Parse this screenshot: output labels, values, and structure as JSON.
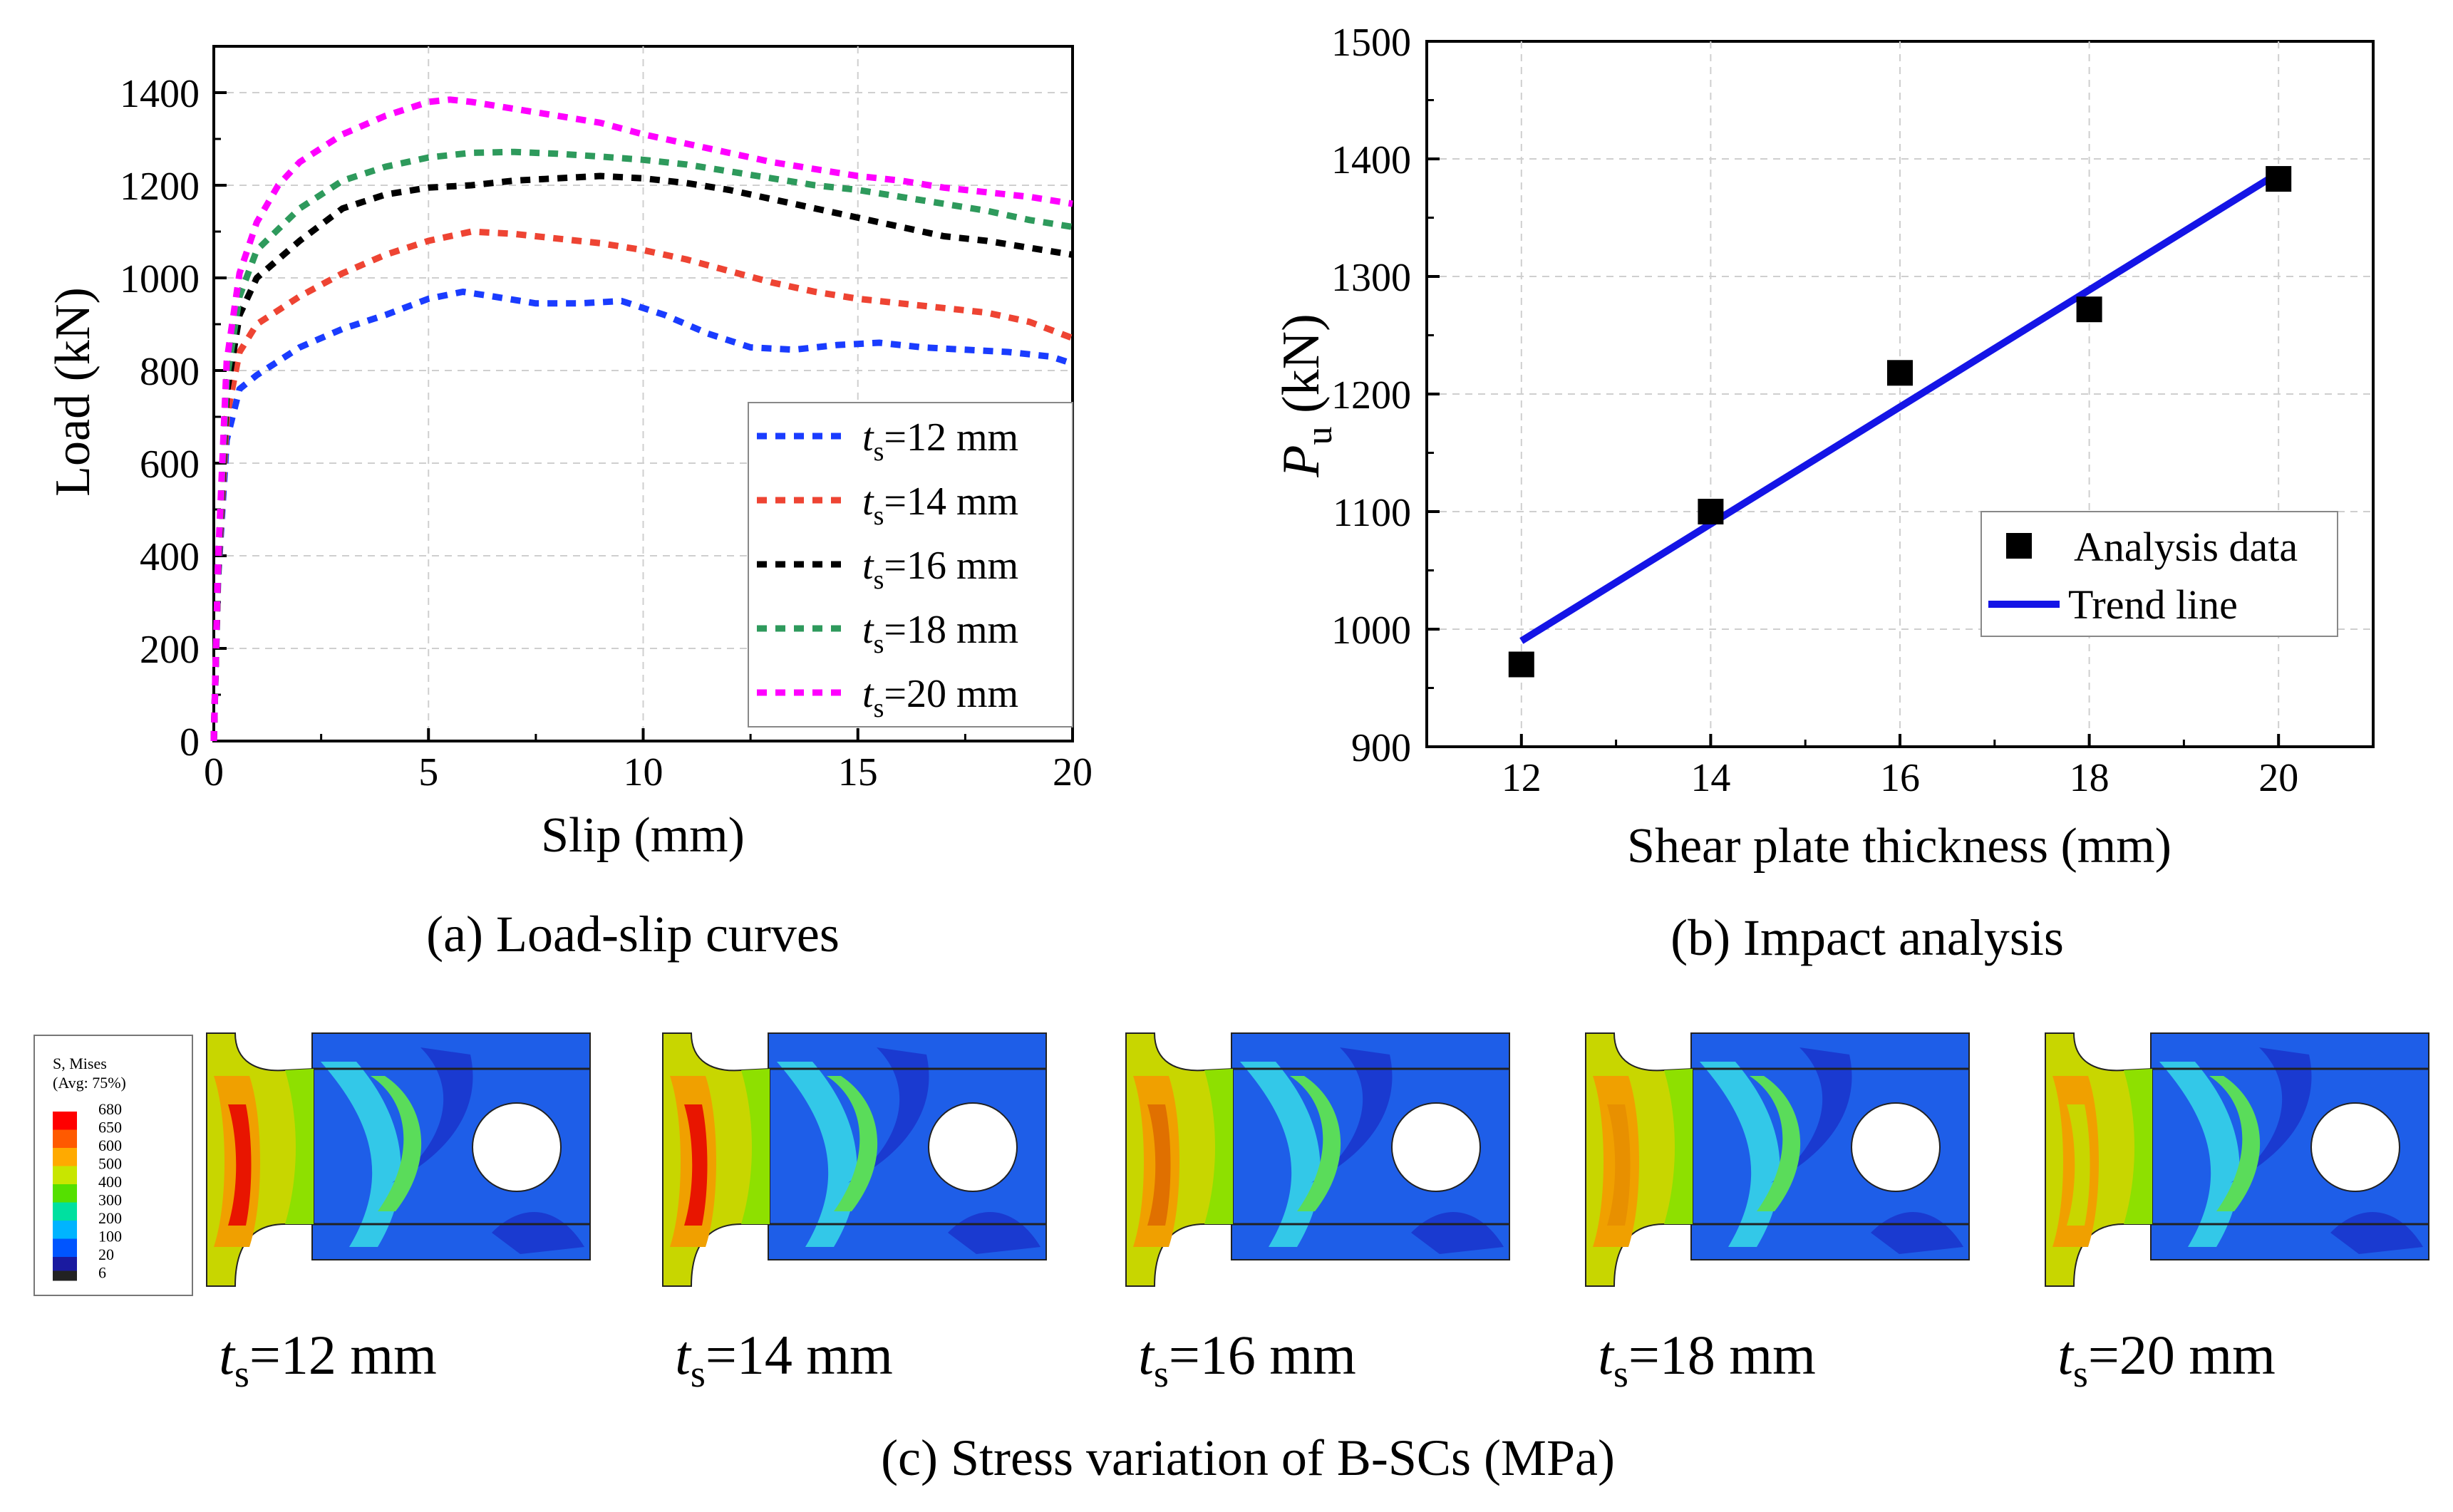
{
  "captions": {
    "a": "(a) Load-slip curves",
    "b": "(b) Impact analysis",
    "c": "(c) Stress variation of B-SCs (MPa)"
  },
  "chart_data": [
    {
      "type": "line",
      "title": "",
      "xlabel": "Slip (mm)",
      "ylabel": "Load (kN)",
      "xlim": [
        0,
        20
      ],
      "ylim": [
        0,
        1500
      ],
      "xticks": [
        0,
        5,
        10,
        15,
        20
      ],
      "yticks": [
        0,
        200,
        400,
        600,
        800,
        1000,
        1200,
        1400
      ],
      "legend_position": "bottom-right",
      "series": [
        {
          "name": "ts=12 mm",
          "label_base": "t",
          "label_sub": "s",
          "label_rest": "=12 mm",
          "color": "#1a3cff",
          "x": [
            0,
            0.1,
            0.3,
            0.6,
            1,
            2,
            3,
            4,
            5,
            5.8,
            6.5,
            7.5,
            8.5,
            9.5,
            10.5,
            11.5,
            12.5,
            13.5,
            14.5,
            15.5,
            16.5,
            17.5,
            18.5,
            19.5,
            20
          ],
          "y": [
            0,
            350,
            650,
            760,
            790,
            850,
            890,
            920,
            955,
            970,
            960,
            945,
            945,
            950,
            920,
            880,
            850,
            845,
            855,
            860,
            850,
            845,
            840,
            830,
            815
          ]
        },
        {
          "name": "ts=14 mm",
          "label_base": "t",
          "label_sub": "s",
          "label_rest": "=14 mm",
          "color": "#ee4433",
          "x": [
            0,
            0.1,
            0.3,
            0.6,
            1,
            2,
            3,
            4,
            5,
            6,
            7,
            8,
            9,
            10,
            11,
            12,
            13,
            14,
            15,
            16,
            17,
            18,
            19,
            20
          ],
          "y": [
            0,
            360,
            700,
            840,
            900,
            960,
            1010,
            1050,
            1080,
            1100,
            1095,
            1085,
            1075,
            1060,
            1040,
            1015,
            990,
            970,
            955,
            945,
            935,
            925,
            905,
            870
          ]
        },
        {
          "name": "ts=16 mm",
          "label_base": "t",
          "label_sub": "s",
          "label_rest": "=16 mm",
          "color": "#000000",
          "x": [
            0,
            0.1,
            0.3,
            0.6,
            1,
            2,
            3,
            4,
            5,
            6,
            7,
            8,
            9,
            10,
            11,
            12,
            13,
            14,
            15,
            16,
            17,
            18,
            19,
            20
          ],
          "y": [
            0,
            370,
            750,
            920,
            1000,
            1080,
            1150,
            1180,
            1195,
            1200,
            1210,
            1215,
            1220,
            1215,
            1205,
            1190,
            1170,
            1150,
            1130,
            1110,
            1090,
            1080,
            1065,
            1050
          ]
        },
        {
          "name": "ts=18 mm",
          "label_base": "t",
          "label_sub": "s",
          "label_rest": "=18 mm",
          "color": "#2e9a5c",
          "x": [
            0,
            0.1,
            0.3,
            0.6,
            1,
            2,
            3,
            4,
            5,
            6,
            7,
            8,
            9,
            10,
            11,
            12,
            13,
            14,
            15,
            16,
            17,
            18,
            19,
            20
          ],
          "y": [
            0,
            380,
            780,
            960,
            1060,
            1150,
            1210,
            1240,
            1260,
            1270,
            1272,
            1268,
            1262,
            1255,
            1245,
            1230,
            1215,
            1200,
            1190,
            1175,
            1160,
            1145,
            1125,
            1110
          ]
        },
        {
          "name": "ts=20 mm",
          "label_base": "t",
          "label_sub": "s",
          "label_rest": "=20 mm",
          "color": "#ff00ff",
          "x": [
            0,
            0.1,
            0.3,
            0.6,
            1,
            1.5,
            2,
            3,
            4,
            5,
            5.5,
            6,
            7,
            8,
            9,
            10,
            11,
            12,
            13,
            14,
            15,
            16,
            17,
            18,
            19,
            20
          ],
          "y": [
            0,
            390,
            820,
            1010,
            1120,
            1200,
            1250,
            1310,
            1350,
            1380,
            1385,
            1380,
            1365,
            1350,
            1335,
            1310,
            1290,
            1270,
            1250,
            1235,
            1220,
            1210,
            1195,
            1185,
            1175,
            1160
          ]
        }
      ]
    },
    {
      "type": "scatter",
      "title": "",
      "xlabel": "Shear plate thickness (mm)",
      "ylabel_base": "P",
      "ylabel_sub": "u",
      "ylabel_rest": " (kN)",
      "xlim": [
        11,
        21
      ],
      "ylim": [
        900,
        1500
      ],
      "xticks": [
        12,
        14,
        16,
        18,
        20
      ],
      "yticks": [
        900,
        1000,
        1100,
        1200,
        1300,
        1400,
        1500
      ],
      "legend_position": "bottom-right",
      "scatter": {
        "name": "Analysis data",
        "color": "#000000",
        "x": [
          12,
          14,
          16,
          18,
          20
        ],
        "y": [
          970,
          1100,
          1218,
          1272,
          1383
        ]
      },
      "trend": {
        "name": "Trend line",
        "color": "#1414e6",
        "x": [
          12,
          20
        ],
        "y": [
          990,
          1388
        ]
      }
    }
  ],
  "stress_panel": {
    "legend_title_1": "S, Mises",
    "legend_title_2": "(Avg: 75%)",
    "levels": [
      {
        "value": "680",
        "color": "#ff0000"
      },
      {
        "value": "650",
        "color": "#ff5a00"
      },
      {
        "value": "600",
        "color": "#ffaa00"
      },
      {
        "value": "500",
        "color": "#c8e600"
      },
      {
        "value": "400",
        "color": "#55e000"
      },
      {
        "value": "300",
        "color": "#00e0a0"
      },
      {
        "value": "200",
        "color": "#00b4ff"
      },
      {
        "value": "100",
        "color": "#0055ff"
      },
      {
        "value": "20",
        "color": "#1a1aa0"
      },
      {
        "value": "6",
        "color": "#222222"
      }
    ],
    "models": [
      {
        "base": "t",
        "sub": "s",
        "rest": "=12 mm",
        "peak_color": "#e81500"
      },
      {
        "base": "t",
        "sub": "s",
        "rest": "=14 mm",
        "peak_color": "#e81500"
      },
      {
        "base": "t",
        "sub": "s",
        "rest": "=16 mm",
        "peak_color": "#e07000"
      },
      {
        "base": "t",
        "sub": "s",
        "rest": "=18 mm",
        "peak_color": "#e89000"
      },
      {
        "base": "t",
        "sub": "s",
        "rest": "=20 mm",
        "peak_color": "#c8d600"
      }
    ]
  }
}
